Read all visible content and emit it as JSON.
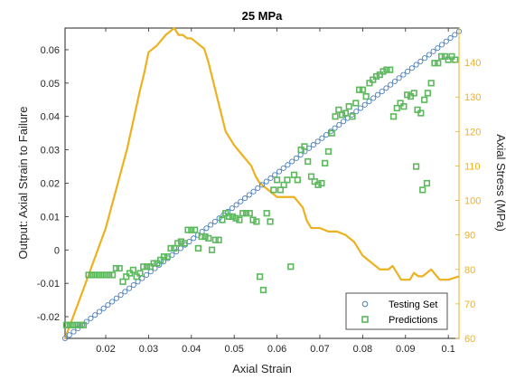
{
  "chart_data": {
    "type": "scatter",
    "title": "25 MPa",
    "xlabel": "Axial Strain",
    "ylabel": "Output: Axial Strain to Failure",
    "y2label": "Axial Stress (MPa)",
    "xlim": [
      0.0105,
      0.1025
    ],
    "ylim": [
      -0.0265,
      0.0665
    ],
    "y2lim": [
      60,
      150
    ],
    "xticks": [
      0.02,
      0.03,
      0.04,
      0.05,
      0.06,
      0.07,
      0.08,
      0.09,
      0.1
    ],
    "xtick_labels": [
      "0.02",
      "0.03",
      "0.04",
      "0.05",
      "0.06",
      "0.07",
      "0.08",
      "0.09",
      "0.1"
    ],
    "yticks": [
      -0.02,
      -0.01,
      0,
      0.01,
      0.02,
      0.03,
      0.04,
      0.05,
      0.06
    ],
    "ytick_labels": [
      "-0.02",
      "-0.01",
      "0",
      "0.01",
      "0.02",
      "0.03",
      "0.04",
      "0.05",
      "0.06"
    ],
    "y2ticks": [
      60,
      70,
      80,
      90,
      100,
      110,
      120,
      130,
      140
    ],
    "y2tick_labels": [
      "60",
      "70",
      "80",
      "90",
      "100",
      "110",
      "120",
      "130",
      "140"
    ],
    "grid": false,
    "legend_position": "bottom-right",
    "colors": {
      "testing": "#4a7ebb",
      "predictions": "#5cb85c",
      "stress": "#edb120",
      "axis": "#262626"
    },
    "series": [
      {
        "name": "Testing Set",
        "type": "scatter",
        "marker": "circle",
        "axis": "left",
        "x_start": 0.0105,
        "x_end": 0.1025,
        "x_step": 0.001,
        "y_equals_x_offset": -0.037
      },
      {
        "name": "Predictions",
        "type": "scatter",
        "marker": "square",
        "axis": "left",
        "points": [
          [
            0.0108,
            -0.0225
          ],
          [
            0.0116,
            -0.0225
          ],
          [
            0.0124,
            -0.0225
          ],
          [
            0.0132,
            -0.0225
          ],
          [
            0.014,
            -0.0225
          ],
          [
            0.0148,
            -0.0225
          ],
          [
            0.016,
            -0.0075
          ],
          [
            0.0168,
            -0.0075
          ],
          [
            0.0176,
            -0.0075
          ],
          [
            0.0184,
            -0.0075
          ],
          [
            0.0192,
            -0.0075
          ],
          [
            0.02,
            -0.0075
          ],
          [
            0.0208,
            -0.0075
          ],
          [
            0.0216,
            -0.0075
          ],
          [
            0.0224,
            -0.0055
          ],
          [
            0.0232,
            -0.0055
          ],
          [
            0.024,
            -0.0095
          ],
          [
            0.0248,
            -0.008
          ],
          [
            0.0256,
            -0.007
          ],
          [
            0.0264,
            -0.006
          ],
          [
            0.0272,
            -0.008
          ],
          [
            0.028,
            -0.007
          ],
          [
            0.0288,
            -0.005
          ],
          [
            0.0296,
            -0.005
          ],
          [
            0.0304,
            -0.005
          ],
          [
            0.0312,
            -0.004
          ],
          [
            0.032,
            -0.004
          ],
          [
            0.0328,
            -0.003
          ],
          [
            0.0336,
            -0.002
          ],
          [
            0.0344,
            -0.002
          ],
          [
            0.0352,
            0.0005
          ],
          [
            0.036,
            0.0005
          ],
          [
            0.0368,
            0.002
          ],
          [
            0.0376,
            0.0025
          ],
          [
            0.0384,
            0.002
          ],
          [
            0.0392,
            0.006
          ],
          [
            0.04,
            0.006
          ],
          [
            0.0408,
            0.006
          ],
          [
            0.0416,
            0.0005
          ],
          [
            0.0424,
            0.004
          ],
          [
            0.0432,
            0.004
          ],
          [
            0.044,
            0.0035
          ],
          [
            0.0448,
            0.0
          ],
          [
            0.0456,
            0.003
          ],
          [
            0.0464,
            0.003
          ],
          [
            0.0472,
            0.009
          ],
          [
            0.048,
            0.011
          ],
          [
            0.0488,
            0.01
          ],
          [
            0.0496,
            0.01
          ],
          [
            0.0504,
            0.0095
          ],
          [
            0.0512,
            0.009
          ],
          [
            0.052,
            0.011
          ],
          [
            0.0528,
            0.011
          ],
          [
            0.0536,
            0.011
          ],
          [
            0.0544,
            0.009
          ],
          [
            0.0552,
            0.0085
          ],
          [
            0.056,
            -0.008
          ],
          [
            0.0568,
            -0.012
          ],
          [
            0.0576,
            0.011
          ],
          [
            0.0584,
            0.0085
          ],
          [
            0.0592,
            0.018
          ],
          [
            0.06,
            0.021
          ],
          [
            0.0608,
            0.018
          ],
          [
            0.0616,
            0.0195
          ],
          [
            0.0624,
            0.021
          ],
          [
            0.0632,
            -0.005
          ],
          [
            0.064,
            0.0225
          ],
          [
            0.0648,
            0.021
          ],
          [
            0.0656,
            0.03
          ],
          [
            0.0664,
            0.031
          ],
          [
            0.0672,
            0.0265
          ],
          [
            0.068,
            0.022
          ],
          [
            0.0688,
            0.0205
          ],
          [
            0.0696,
            0.0195
          ],
          [
            0.0704,
            0.02
          ],
          [
            0.0712,
            0.026
          ],
          [
            0.072,
            0.0295
          ],
          [
            0.0728,
            0.035
          ],
          [
            0.0736,
            0.04
          ],
          [
            0.0744,
            0.042
          ],
          [
            0.0752,
            0.0405
          ],
          [
            0.076,
            0.041
          ],
          [
            0.0768,
            0.043
          ],
          [
            0.0776,
            0.04
          ],
          [
            0.0784,
            0.044
          ],
          [
            0.0792,
            0.048
          ],
          [
            0.08,
            0.048
          ],
          [
            0.0808,
            0.046
          ],
          [
            0.0816,
            0.05
          ],
          [
            0.0824,
            0.051
          ],
          [
            0.0832,
            0.052
          ],
          [
            0.084,
            0.0525
          ],
          [
            0.0848,
            0.0535
          ],
          [
            0.0856,
            0.054
          ],
          [
            0.0864,
            0.054
          ],
          [
            0.0872,
            0.04
          ],
          [
            0.088,
            0.0425
          ],
          [
            0.0888,
            0.044
          ],
          [
            0.0896,
            0.043
          ],
          [
            0.0904,
            0.0465
          ],
          [
            0.0912,
            0.046
          ],
          [
            0.092,
            0.047
          ],
          [
            0.0928,
            0.042
          ],
          [
            0.0936,
            0.041
          ],
          [
            0.0944,
            0.045
          ],
          [
            0.0952,
            0.047
          ],
          [
            0.096,
            0.05
          ],
          [
            0.0968,
            0.056
          ],
          [
            0.0976,
            0.056
          ],
          [
            0.0984,
            0.058
          ],
          [
            0.0992,
            0.058
          ],
          [
            0.1,
            0.057
          ],
          [
            0.1008,
            0.058
          ],
          [
            0.1016,
            0.057
          ],
          [
            0.0925,
            0.025
          ],
          [
            0.094,
            0.018
          ],
          [
            0.095,
            0.02
          ]
        ]
      },
      {
        "name": "",
        "type": "line",
        "axis": "right",
        "points": [
          [
            0.0105,
            60
          ],
          [
            0.015,
            75
          ],
          [
            0.02,
            92
          ],
          [
            0.025,
            115
          ],
          [
            0.028,
            132
          ],
          [
            0.029,
            137
          ],
          [
            0.03,
            143
          ],
          [
            0.032,
            145
          ],
          [
            0.034,
            148
          ],
          [
            0.035,
            149
          ],
          [
            0.036,
            150
          ],
          [
            0.037,
            148
          ],
          [
            0.038,
            148
          ],
          [
            0.039,
            147
          ],
          [
            0.04,
            147
          ],
          [
            0.042,
            145
          ],
          [
            0.043,
            144
          ],
          [
            0.044,
            140
          ],
          [
            0.046,
            130
          ],
          [
            0.048,
            120
          ],
          [
            0.05,
            116
          ],
          [
            0.052,
            113
          ],
          [
            0.054,
            110
          ],
          [
            0.055,
            107
          ],
          [
            0.056,
            105
          ],
          [
            0.058,
            103
          ],
          [
            0.06,
            101
          ],
          [
            0.062,
            101
          ],
          [
            0.064,
            101
          ],
          [
            0.066,
            98
          ],
          [
            0.067,
            94
          ],
          [
            0.068,
            92
          ],
          [
            0.07,
            92
          ],
          [
            0.072,
            91
          ],
          [
            0.074,
            91
          ],
          [
            0.076,
            90
          ],
          [
            0.078,
            88
          ],
          [
            0.08,
            84
          ],
          [
            0.082,
            82
          ],
          [
            0.084,
            80
          ],
          [
            0.086,
            80
          ],
          [
            0.087,
            81
          ],
          [
            0.088,
            79
          ],
          [
            0.089,
            77
          ],
          [
            0.09,
            77
          ],
          [
            0.091,
            77
          ],
          [
            0.092,
            79
          ],
          [
            0.093,
            78
          ],
          [
            0.094,
            78
          ],
          [
            0.096,
            80
          ],
          [
            0.098,
            77
          ],
          [
            0.1,
            77
          ],
          [
            0.1025,
            78
          ]
        ]
      }
    ]
  }
}
